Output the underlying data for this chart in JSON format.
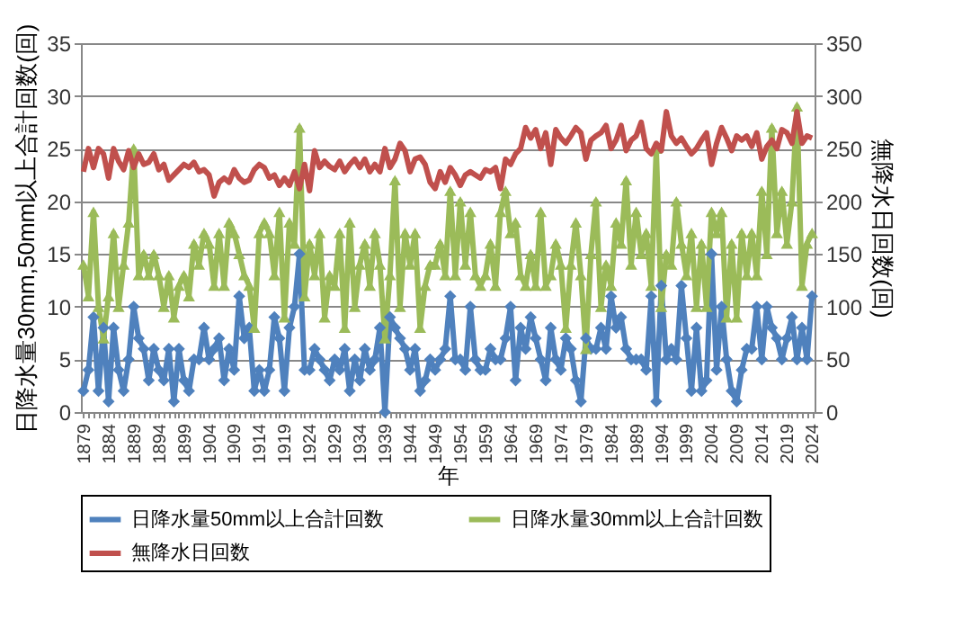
{
  "chart_data": {
    "type": "line",
    "xlabel": "年",
    "ylabel": "日降水量30mm,50mm以上合計回数(回)",
    "y2label": "無降水日回数(回)",
    "categories": [
      "1879",
      null,
      null,
      null,
      null,
      "1884",
      null,
      null,
      null,
      null,
      "1889",
      null,
      null,
      null,
      null,
      "1894",
      null,
      null,
      null,
      null,
      "1899",
      null,
      null,
      null,
      null,
      "1904",
      null,
      null,
      null,
      null,
      "1909",
      null,
      null,
      null,
      null,
      "1914",
      null,
      null,
      null,
      null,
      "1919",
      null,
      null,
      null,
      null,
      "1924",
      null,
      null,
      null,
      null,
      "1929",
      null,
      null,
      null,
      null,
      "1934",
      null,
      null,
      null,
      null,
      "1939",
      null,
      null,
      null,
      null,
      "1944",
      null,
      null,
      null,
      null,
      "1949",
      null,
      null,
      null,
      null,
      "1954",
      null,
      null,
      null,
      null,
      "1959",
      null,
      null,
      null,
      null,
      "1964",
      null,
      null,
      null,
      null,
      "1969",
      null,
      null,
      null,
      null,
      "1974",
      null,
      null,
      null,
      null,
      "1979",
      null,
      null,
      null,
      null,
      "1984",
      null,
      null,
      null,
      null,
      "1989",
      null,
      null,
      null,
      null,
      "1994",
      null,
      null,
      null,
      null,
      "1999",
      null,
      null,
      null,
      null,
      "2004",
      null,
      null,
      null,
      null,
      "2009",
      null,
      null,
      null,
      null,
      "2014",
      null,
      null,
      null,
      null,
      "2019",
      null,
      null,
      null,
      null,
      "2024"
    ],
    "series": [
      {
        "name": "日降水量50mm以上合計回数",
        "color": "#4f81bd",
        "marker": "diamond",
        "values": [
          2,
          4,
          9,
          2,
          8,
          1,
          8,
          4,
          2,
          5,
          10,
          7,
          6,
          3,
          6,
          4,
          3,
          6,
          1,
          6,
          3,
          2,
          5,
          5,
          8,
          5,
          6,
          7,
          3,
          6,
          4,
          11,
          7,
          8,
          2,
          4,
          2,
          4,
          9,
          7,
          2,
          8,
          10,
          15,
          4,
          4,
          6,
          5,
          4,
          3,
          5,
          4,
          6,
          2,
          5,
          3,
          6,
          4,
          5,
          8,
          0,
          9,
          8,
          7,
          6,
          4,
          6,
          2,
          3,
          5,
          4,
          5,
          6,
          11,
          5,
          5,
          4,
          10,
          5,
          4,
          4,
          6,
          5,
          5,
          7,
          10,
          3,
          8,
          6,
          9,
          7,
          5,
          3,
          8,
          5,
          4,
          7,
          6,
          3,
          1,
          7,
          6,
          6,
          8,
          6,
          11,
          8,
          9,
          6,
          5,
          5,
          5,
          4,
          11,
          1,
          12,
          5,
          6,
          5,
          12,
          7,
          2,
          8,
          2,
          3,
          15,
          4,
          10,
          5,
          2,
          1,
          4,
          6,
          6,
          10,
          5,
          10,
          8,
          7,
          5,
          7,
          9,
          5,
          8,
          5,
          11
        ]
      },
      {
        "name": "日降水量30mm以上合計回数",
        "color": "#9bbb59",
        "marker": "triangle",
        "values": [
          14,
          11,
          19,
          10,
          7,
          11,
          17,
          10,
          14,
          18,
          25,
          13,
          15,
          13,
          15,
          13,
          10,
          13,
          9,
          12,
          13,
          11,
          16,
          14,
          17,
          16,
          12,
          17,
          12,
          18,
          17,
          15,
          13,
          12,
          8,
          17,
          18,
          17,
          13,
          19,
          9,
          18,
          16,
          27,
          11,
          16,
          13,
          17,
          9,
          13,
          12,
          17,
          8,
          18,
          10,
          14,
          16,
          12,
          17,
          14,
          7,
          13,
          22,
          10,
          17,
          14,
          17,
          8,
          12,
          14,
          14,
          16,
          13,
          21,
          13,
          20,
          14,
          19,
          13,
          12,
          13,
          16,
          12,
          19,
          21,
          17,
          18,
          13,
          12,
          15,
          12,
          19,
          12,
          13,
          16,
          14,
          8,
          14,
          18,
          13,
          6,
          15,
          20,
          10,
          14,
          12,
          18,
          16,
          22,
          14,
          19,
          15,
          17,
          12,
          25,
          10,
          15,
          14,
          20,
          16,
          13,
          17,
          10,
          16,
          10,
          19,
          17,
          19,
          9,
          16,
          9,
          17,
          13,
          17,
          13,
          21,
          15,
          27,
          17,
          21,
          16,
          20,
          29,
          12,
          16,
          17
        ]
      },
      {
        "name": "無降水日回数",
        "color": "#c0504d",
        "marker": "none",
        "axis": "y2",
        "values": [
          228,
          250,
          232,
          250,
          245,
          222,
          250,
          238,
          230,
          248,
          232,
          245,
          235,
          237,
          245,
          230,
          235,
          220,
          225,
          230,
          235,
          232,
          237,
          228,
          230,
          225,
          205,
          218,
          222,
          218,
          230,
          222,
          218,
          220,
          230,
          235,
          232,
          222,
          225,
          215,
          222,
          215,
          228,
          212,
          235,
          210,
          248,
          232,
          238,
          233,
          230,
          238,
          228,
          235,
          240,
          232,
          240,
          228,
          235,
          228,
          250,
          232,
          240,
          255,
          248,
          228,
          240,
          242,
          235,
          218,
          212,
          228,
          218,
          232,
          225,
          215,
          225,
          228,
          225,
          222,
          230,
          228,
          232,
          212,
          240,
          235,
          245,
          250,
          270,
          260,
          268,
          250,
          265,
          235,
          268,
          260,
          255,
          262,
          270,
          265,
          240,
          258,
          262,
          265,
          272,
          250,
          258,
          272,
          248,
          258,
          262,
          275,
          250,
          245,
          255,
          248,
          285,
          262,
          255,
          260,
          252,
          245,
          250,
          258,
          265,
          235,
          255,
          270,
          260,
          248,
          262,
          258,
          262,
          252,
          265,
          240,
          252,
          258,
          250,
          268,
          265,
          255,
          285,
          255,
          262,
          260
        ]
      }
    ],
    "ylim": [
      0,
      35
    ],
    "yticks": [
      0,
      5,
      10,
      15,
      20,
      25,
      30,
      35
    ],
    "y2lim": [
      0,
      350
    ],
    "y2ticks": [
      0,
      50,
      100,
      150,
      200,
      250,
      300,
      350
    ],
    "grid": "y",
    "legend": "bottom"
  }
}
